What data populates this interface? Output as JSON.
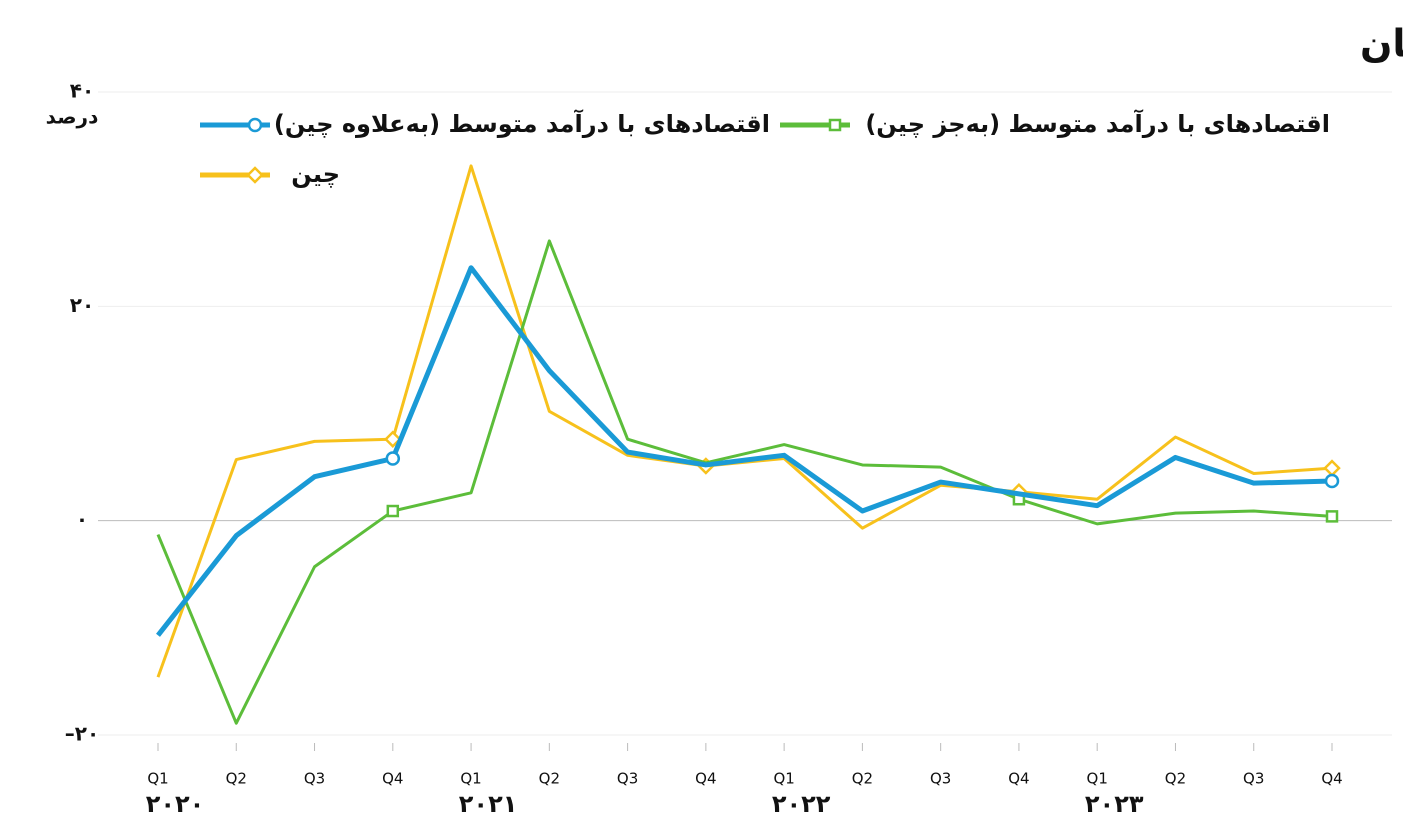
{
  "chart_data": {
    "type": "line",
    "title": "نرخ رشد تولید صنعتی به تفکیک مناطق مختلف جهان",
    "y_label": "درصد",
    "categories": [
      "Q1",
      "Q2",
      "Q3",
      "Q4",
      "Q1",
      "Q2",
      "Q3",
      "Q4",
      "Q1",
      "Q2",
      "Q3",
      "Q4",
      "Q1",
      "Q2",
      "Q3",
      "Q4"
    ],
    "years": [
      "۲۰۲۰",
      "۲۰۲۱",
      "۲۰۲۲",
      "۲۰۲۳"
    ],
    "ylim": [
      -20,
      40
    ],
    "yticks": [
      {
        "value": -20,
        "label": "–۲۰"
      },
      {
        "value": 0,
        "label": "۰"
      },
      {
        "value": 20,
        "label": "۲۰"
      },
      {
        "value": 40,
        "label": "۴۰"
      }
    ],
    "grid": true,
    "series": [
      {
        "name": "اقتصادهای با درآمد متوسط (به‌علاوه چین)",
        "color": "#1a9ad6",
        "values": [
          -10.7,
          -1.4,
          4.1,
          5.8,
          23.6,
          14.0,
          6.4,
          5.2,
          6.1,
          0.9,
          3.6,
          2.5,
          1.4,
          5.9,
          3.5,
          3.7
        ]
      },
      {
        "name": "اقتصادهای با درآمد متوسط (به‌جز چین)",
        "color": "#5cbd3a",
        "values": [
          -1.3,
          -18.9,
          -4.3,
          0.9,
          2.6,
          26.1,
          7.6,
          5.4,
          7.1,
          5.2,
          5.0,
          2.0,
          -0.3,
          0.7,
          0.9,
          0.4
        ]
      },
      {
        "name": "چین",
        "color": "#f7c11c",
        "values": [
          -14.6,
          5.7,
          7.4,
          7.6,
          33.1,
          10.2,
          6.1,
          5.1,
          5.8,
          -0.7,
          3.3,
          2.7,
          2.0,
          7.8,
          4.4,
          4.9
        ]
      }
    ]
  }
}
